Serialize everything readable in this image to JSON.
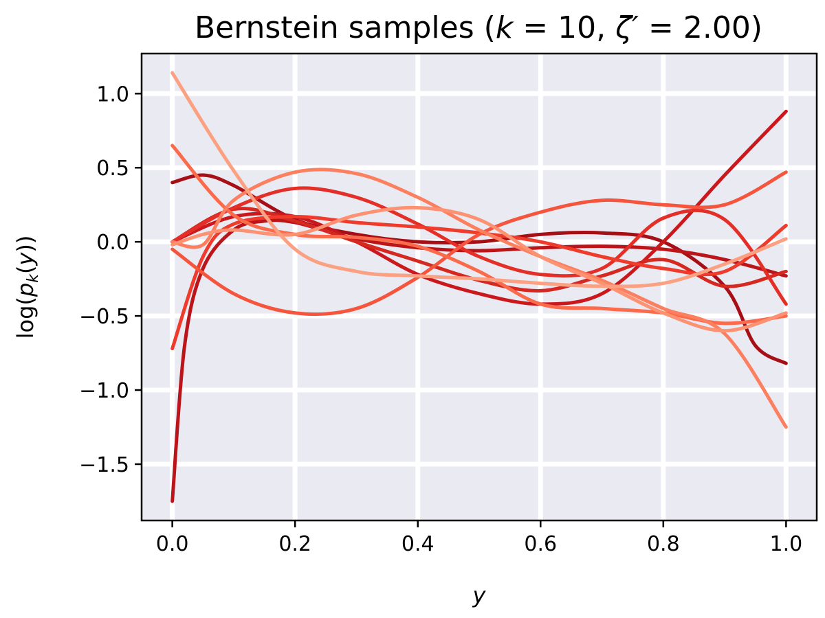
{
  "chart_data": {
    "type": "line",
    "title": "Bernstein samples (k = 10, ζ′ = 2.00)",
    "title_parts": {
      "prefix": "Bernstein samples (",
      "k_symbol": "k",
      "k_part": " = 10, ",
      "zeta_symbol": "ζ′",
      "zeta_part": " = 2.00)"
    },
    "xlabel": "y",
    "ylabel": "log(p_k(y))",
    "ylabel_parts": {
      "pre": "log(",
      "p": "p",
      "sub": "k",
      "mid": "(",
      "y": "y",
      "post": "))"
    },
    "xlim": [
      -0.05,
      1.05
    ],
    "ylim": [
      -1.88,
      1.27
    ],
    "x_ticks": [
      {
        "value": 0.0,
        "label": "0.0"
      },
      {
        "value": 0.2,
        "label": "0.2"
      },
      {
        "value": 0.4,
        "label": "0.4"
      },
      {
        "value": 0.6,
        "label": "0.6"
      },
      {
        "value": 0.8,
        "label": "0.8"
      },
      {
        "value": 1.0,
        "label": "1.0"
      }
    ],
    "y_ticks": [
      {
        "value": 1.0,
        "label": "1.0"
      },
      {
        "value": 0.5,
        "label": "0.5"
      },
      {
        "value": 0.0,
        "label": "0.0"
      },
      {
        "value": -0.5,
        "label": "−0.5"
      },
      {
        "value": -1.0,
        "label": "−1.0"
      },
      {
        "value": -1.5,
        "label": "−1.5"
      }
    ],
    "grid": true,
    "legend": "none",
    "colors": {
      "plot_background": "#eaeaf2",
      "grid": "#ffffff",
      "axes": "#000000"
    },
    "series": [
      {
        "color": "#a50f15",
        "x": [
          0.0,
          0.05,
          0.1,
          0.2,
          0.3,
          0.4,
          0.5,
          0.6,
          0.7,
          0.8,
          0.9,
          0.95,
          1.0
        ],
        "y": [
          0.4,
          0.45,
          0.38,
          0.15,
          0.05,
          0.0,
          0.0,
          0.05,
          0.06,
          0.0,
          -0.3,
          -0.7,
          -0.82
        ]
      },
      {
        "color": "#bb151a",
        "x": [
          0.0,
          0.02,
          0.05,
          0.1,
          0.15,
          0.2,
          0.3,
          0.4,
          0.5,
          0.6,
          0.7,
          0.8,
          0.9,
          1.0
        ],
        "y": [
          -1.75,
          -0.7,
          -0.18,
          0.08,
          0.14,
          0.13,
          0.02,
          -0.04,
          -0.06,
          -0.04,
          -0.03,
          -0.05,
          -0.12,
          -0.23
        ]
      },
      {
        "color": "#cb181d",
        "x": [
          0.0,
          0.1,
          0.2,
          0.3,
          0.4,
          0.5,
          0.6,
          0.7,
          0.8,
          0.9,
          1.0
        ],
        "y": [
          0.0,
          0.17,
          0.17,
          0.0,
          -0.22,
          -0.35,
          -0.42,
          -0.35,
          0.0,
          0.45,
          0.88
        ]
      },
      {
        "color": "#d42820",
        "x": [
          0.0,
          0.1,
          0.2,
          0.3,
          0.4,
          0.5,
          0.6,
          0.7,
          0.8,
          0.9,
          1.0
        ],
        "y": [
          0.0,
          0.22,
          0.14,
          0.0,
          -0.13,
          -0.26,
          -0.33,
          -0.23,
          -0.12,
          -0.3,
          -0.2
        ]
      },
      {
        "color": "#e32f27",
        "x": [
          0.0,
          0.1,
          0.2,
          0.3,
          0.4,
          0.5,
          0.6,
          0.7,
          0.8,
          0.9,
          1.0
        ],
        "y": [
          0.0,
          0.23,
          0.36,
          0.3,
          0.12,
          -0.1,
          -0.22,
          -0.18,
          0.16,
          0.15,
          -0.42
        ]
      },
      {
        "color": "#ef3b2c",
        "x": [
          0.0,
          0.05,
          0.1,
          0.2,
          0.3,
          0.4,
          0.5,
          0.6,
          0.7,
          0.8,
          0.9,
          1.0
        ],
        "y": [
          -0.72,
          -0.1,
          0.12,
          0.17,
          0.13,
          0.1,
          0.06,
          0.0,
          -0.1,
          -0.18,
          -0.2,
          0.11
        ]
      },
      {
        "color": "#f5553d",
        "x": [
          0.0,
          0.1,
          0.2,
          0.3,
          0.4,
          0.5,
          0.6,
          0.7,
          0.8,
          0.9,
          1.0
        ],
        "y": [
          -0.05,
          -0.35,
          -0.48,
          -0.45,
          -0.24,
          0.05,
          0.2,
          0.28,
          0.25,
          0.25,
          0.47
        ]
      },
      {
        "color": "#fb6a4a",
        "x": [
          0.0,
          0.1,
          0.2,
          0.3,
          0.4,
          0.5,
          0.6,
          0.7,
          0.8,
          0.9,
          1.0
        ],
        "y": [
          0.65,
          0.18,
          0.05,
          0.03,
          -0.03,
          -0.2,
          -0.42,
          -0.45,
          -0.48,
          -0.55,
          -0.5
        ]
      },
      {
        "color": "#fc7f5f",
        "x": [
          0.0,
          0.05,
          0.1,
          0.2,
          0.3,
          0.4,
          0.5,
          0.6,
          0.7,
          0.8,
          0.9,
          1.0
        ],
        "y": [
          0.0,
          -0.02,
          0.28,
          0.47,
          0.46,
          0.3,
          0.08,
          -0.1,
          -0.26,
          -0.45,
          -0.62,
          -1.25
        ]
      },
      {
        "color": "#fc9272",
        "x": [
          0.0,
          0.05,
          0.1,
          0.2,
          0.3,
          0.4,
          0.5,
          0.6,
          0.7,
          0.8,
          0.9,
          1.0
        ],
        "y": [
          -0.02,
          0.05,
          0.08,
          0.05,
          0.18,
          0.23,
          0.15,
          -0.1,
          -0.28,
          -0.48,
          -0.6,
          -0.48
        ]
      },
      {
        "color": "#fca082",
        "x": [
          0.0,
          0.1,
          0.2,
          0.3,
          0.4,
          0.5,
          0.6,
          0.7,
          0.8,
          0.9,
          1.0
        ],
        "y": [
          1.14,
          0.48,
          -0.05,
          -0.2,
          -0.23,
          -0.25,
          -0.28,
          -0.3,
          -0.28,
          -0.15,
          0.02
        ]
      }
    ]
  }
}
